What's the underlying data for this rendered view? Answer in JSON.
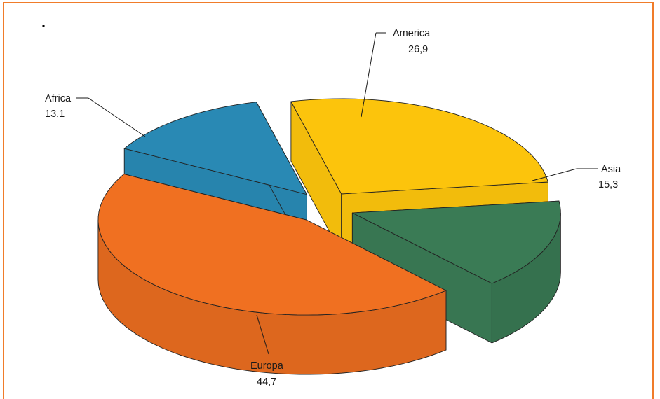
{
  "chart_data": {
    "type": "pie",
    "title": "",
    "slices": [
      {
        "label": "America",
        "value": 26.9,
        "display": "26,9",
        "color": "#fcc40c"
      },
      {
        "label": "Asia",
        "value": 15.3,
        "display": "15,3",
        "color": "#3a7b55"
      },
      {
        "label": "Europa",
        "value": 44.7,
        "display": "44,7",
        "color": "#f07021"
      },
      {
        "label": "Africa",
        "value": 13.1,
        "display": "13,1",
        "color": "#2989b4"
      }
    ],
    "style": "3d-exploded"
  },
  "frame_color": "#f07c2a"
}
